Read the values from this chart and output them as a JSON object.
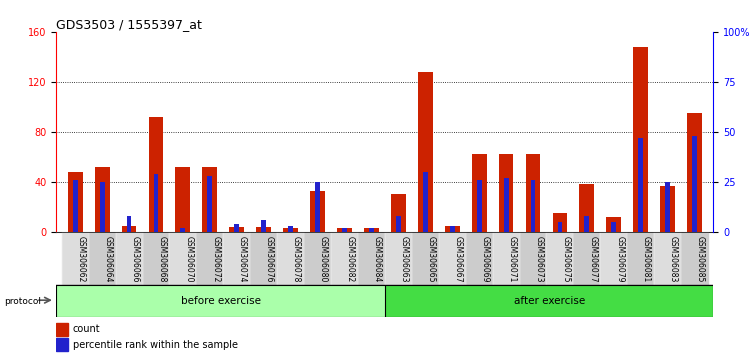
{
  "title": "GDS3503 / 1555397_at",
  "samples": [
    "GSM306062",
    "GSM306064",
    "GSM306066",
    "GSM306068",
    "GSM306070",
    "GSM306072",
    "GSM306074",
    "GSM306076",
    "GSM306078",
    "GSM306080",
    "GSM306082",
    "GSM306084",
    "GSM306063",
    "GSM306065",
    "GSM306067",
    "GSM306069",
    "GSM306071",
    "GSM306073",
    "GSM306075",
    "GSM306077",
    "GSM306079",
    "GSM306081",
    "GSM306083",
    "GSM306085"
  ],
  "count_values": [
    48,
    52,
    5,
    92,
    52,
    52,
    4,
    4,
    3,
    33,
    3,
    3,
    30,
    128,
    5,
    62,
    62,
    62,
    15,
    38,
    12,
    148,
    37,
    95
  ],
  "percentile_values": [
    26,
    25,
    8,
    29,
    2,
    28,
    4,
    6,
    3,
    25,
    2,
    2,
    8,
    30,
    3,
    26,
    27,
    26,
    5,
    8,
    5,
    47,
    25,
    48
  ],
  "before_exercise_count": 12,
  "after_exercise_count": 12,
  "ylim_left": [
    0,
    160
  ],
  "ylim_right": [
    0,
    100
  ],
  "yticks_left": [
    0,
    40,
    80,
    120,
    160
  ],
  "ytick_labels_right": [
    "0",
    "25",
    "50",
    "75",
    "100%"
  ],
  "grid_values": [
    40,
    80,
    120
  ],
  "bar_color_count": "#cc2200",
  "bar_color_percentile": "#2222cc",
  "before_label": "before exercise",
  "after_label": "after exercise",
  "before_color": "#aaffaa",
  "after_color": "#44dd44",
  "protocol_label": "protocol",
  "legend_count": "count",
  "legend_percentile": "percentile rank within the sample",
  "bg_color": "#ffffff",
  "plot_bg": "#ffffff",
  "cell_color_odd": "#dddddd",
  "cell_color_even": "#cccccc",
  "title_fontsize": 9,
  "tick_fontsize": 7,
  "sample_fontsize": 5.5
}
